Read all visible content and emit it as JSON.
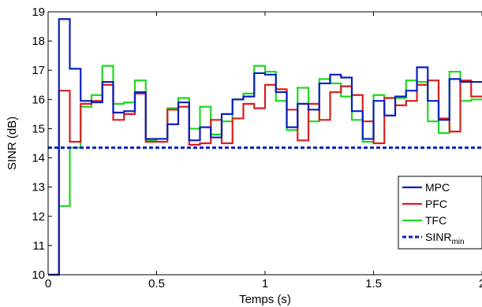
{
  "chart_data": {
    "type": "line",
    "title": "",
    "xlabel": "Temps (s)",
    "ylabel": "SINR (dB)",
    "xlim": [
      0,
      2
    ],
    "ylim": [
      10,
      19
    ],
    "xticks": [
      0,
      0.5,
      1,
      1.5,
      2
    ],
    "xtick_labels": [
      "0",
      "0.5",
      "1",
      "1.5",
      "2"
    ],
    "yticks": [
      10,
      11,
      12,
      13,
      14,
      15,
      16,
      17,
      18,
      19
    ],
    "ytick_labels": [
      "10",
      "11",
      "12",
      "13",
      "14",
      "15",
      "16",
      "17",
      "18",
      "19"
    ],
    "grid": false,
    "legend_position": "bottom-right",
    "step_width": 0.05,
    "step_start": 0.05,
    "series": [
      {
        "name": "MPC",
        "color": "#0a1fbf",
        "start_level": 10,
        "values": [
          18.75,
          17.05,
          15.95,
          15.9,
          16.6,
          15.55,
          15.6,
          16.25,
          14.65,
          14.65,
          15.15,
          15.9,
          14.6,
          15.05,
          14.7,
          15.5,
          16.0,
          16.1,
          16.9,
          16.85,
          16.25,
          15.05,
          15.85,
          15.65,
          16.55,
          16.85,
          16.75,
          15.6,
          14.65,
          15.95,
          15.45,
          16.1,
          16.3,
          17.1,
          15.95,
          15.3,
          16.7,
          16.6,
          16.6
        ]
      },
      {
        "name": "PFC",
        "color": "#d81e1e",
        "start_level": 10,
        "values": [
          16.3,
          14.55,
          15.85,
          15.95,
          16.5,
          15.3,
          15.5,
          16.2,
          14.55,
          14.55,
          15.65,
          15.75,
          14.45,
          14.5,
          15.3,
          14.5,
          15.35,
          15.85,
          15.7,
          16.5,
          16.35,
          15.65,
          14.6,
          15.85,
          15.3,
          16.25,
          16.45,
          16.15,
          15.25,
          14.5,
          16.05,
          15.8,
          15.95,
          16.5,
          16.65,
          15.35,
          14.9,
          16.65,
          16.1
        ]
      },
      {
        "name": "TFC",
        "color": "#1ed81e",
        "start_level": 10,
        "values": [
          12.35,
          14.35,
          15.75,
          16.15,
          17.15,
          15.85,
          15.9,
          16.65,
          14.6,
          14.65,
          15.7,
          16.05,
          15.0,
          15.75,
          14.8,
          15.25,
          16.0,
          16.2,
          17.15,
          16.95,
          15.95,
          14.95,
          16.4,
          15.25,
          16.7,
          16.55,
          16.1,
          15.3,
          14.55,
          16.15,
          16.05,
          16.05,
          16.65,
          16.6,
          15.25,
          14.85,
          16.95,
          15.95,
          16.0
        ]
      },
      {
        "name": "SINR",
        "name_sub": "min",
        "color": "#0a1fbf",
        "dashed": true,
        "x": [
          0,
          2
        ],
        "values": [
          14.35,
          14.35
        ]
      }
    ]
  }
}
